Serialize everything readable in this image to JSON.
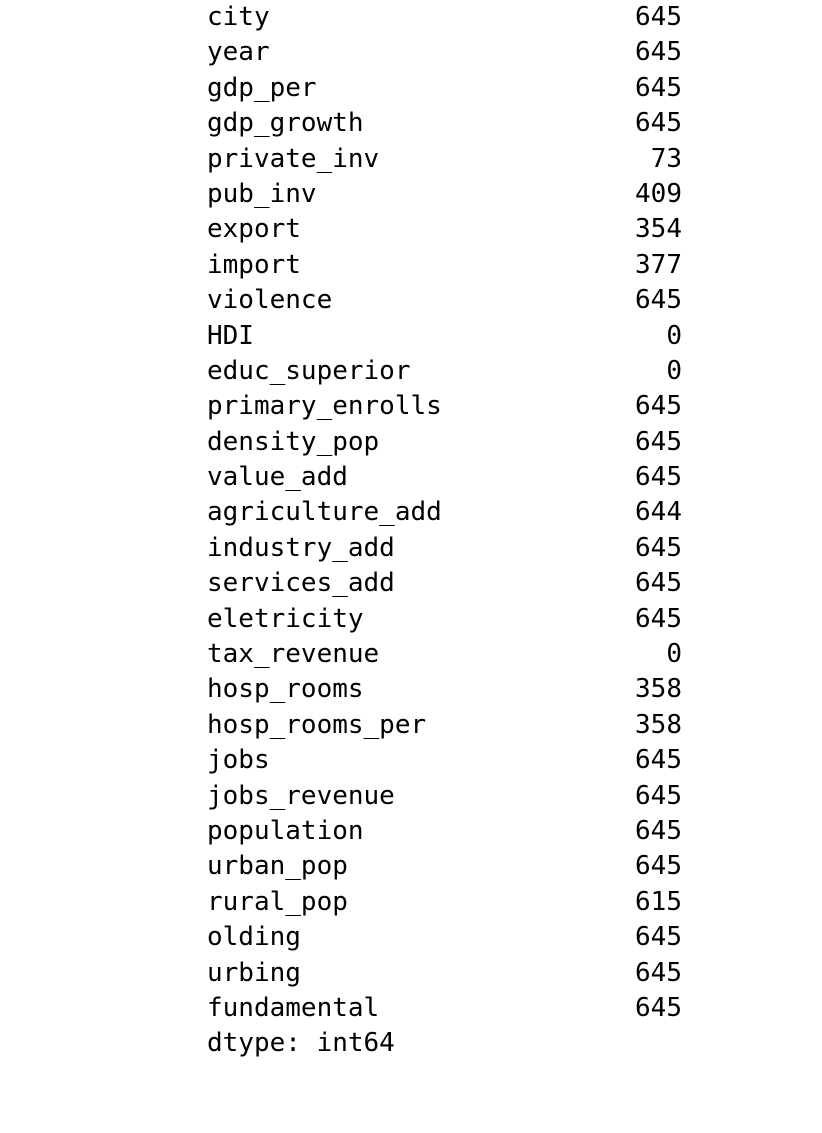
{
  "output": {
    "rows": [
      {
        "name": "city",
        "count": "645"
      },
      {
        "name": "year",
        "count": "645"
      },
      {
        "name": "gdp_per",
        "count": "645"
      },
      {
        "name": "gdp_growth",
        "count": "645"
      },
      {
        "name": "private_inv",
        "count": "73"
      },
      {
        "name": "pub_inv",
        "count": "409"
      },
      {
        "name": "export",
        "count": "354"
      },
      {
        "name": "import",
        "count": "377"
      },
      {
        "name": "violence",
        "count": "645"
      },
      {
        "name": "HDI",
        "count": "0"
      },
      {
        "name": "educ_superior",
        "count": "0"
      },
      {
        "name": "primary_enrolls",
        "count": "645"
      },
      {
        "name": "density_pop",
        "count": "645"
      },
      {
        "name": "value_add",
        "count": "645"
      },
      {
        "name": "agriculture_add",
        "count": "644"
      },
      {
        "name": "industry_add",
        "count": "645"
      },
      {
        "name": "services_add",
        "count": "645"
      },
      {
        "name": "eletricity",
        "count": "645"
      },
      {
        "name": "tax_revenue",
        "count": "0"
      },
      {
        "name": "hosp_rooms",
        "count": "358"
      },
      {
        "name": "hosp_rooms_per",
        "count": "358"
      },
      {
        "name": "jobs",
        "count": "645"
      },
      {
        "name": "jobs_revenue",
        "count": "645"
      },
      {
        "name": "population",
        "count": "645"
      },
      {
        "name": "urban_pop",
        "count": "645"
      },
      {
        "name": "rural_pop",
        "count": "615"
      },
      {
        "name": "olding",
        "count": "645"
      },
      {
        "name": "urbing",
        "count": "645"
      },
      {
        "name": "fundamental",
        "count": "645"
      }
    ],
    "dtype_line": "dtype: int64"
  }
}
